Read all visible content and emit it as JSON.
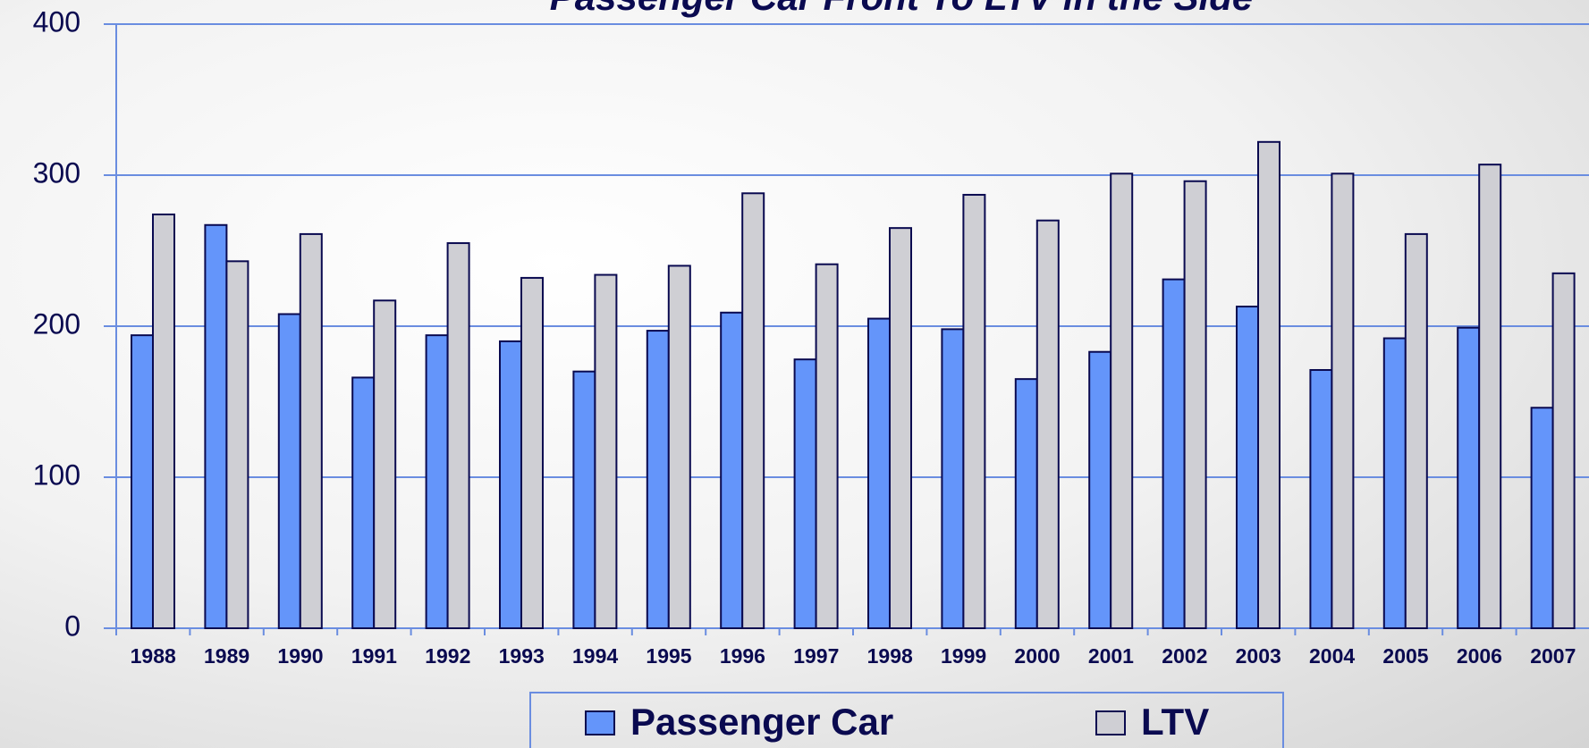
{
  "chart_data": {
    "type": "bar",
    "title": "Passenger Car Front To LTV in the Side",
    "categories": [
      "1988",
      "1989",
      "1990",
      "1991",
      "1992",
      "1993",
      "1994",
      "1995",
      "1996",
      "1997",
      "1998",
      "1999",
      "2000",
      "2001",
      "2002",
      "2003",
      "2004",
      "2005",
      "2006",
      "2007"
    ],
    "series": [
      {
        "name": "Passenger Car",
        "color": "#6495fa",
        "values": [
          194,
          267,
          208,
          166,
          194,
          190,
          170,
          197,
          209,
          178,
          205,
          198,
          165,
          183,
          231,
          213,
          171,
          192,
          199,
          146
        ]
      },
      {
        "name": "LTV",
        "color": "#cfcfd4",
        "values": [
          274,
          243,
          261,
          217,
          255,
          232,
          234,
          240,
          288,
          241,
          265,
          287,
          270,
          301,
          296,
          322,
          301,
          261,
          307,
          235
        ]
      }
    ],
    "ylim": [
      0,
      400
    ],
    "yticks": [
      0,
      100,
      200,
      300,
      400
    ],
    "grid": true
  }
}
